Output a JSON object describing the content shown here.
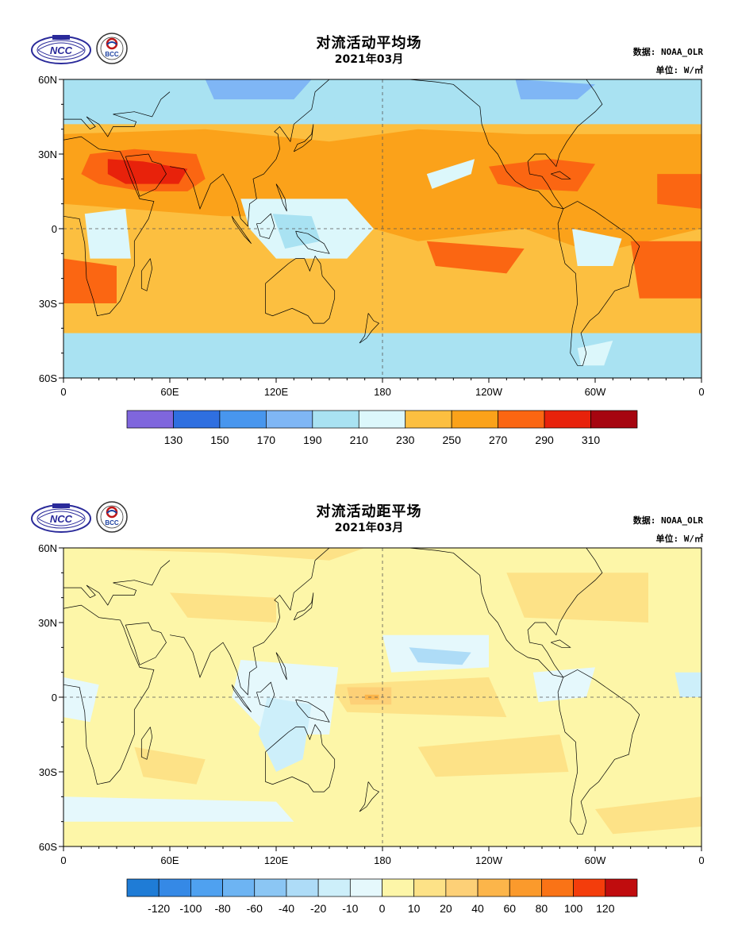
{
  "panels": [
    {
      "id": "mean",
      "title": "对流活动平均场",
      "subtitle": "2021年03月",
      "source": "数据: NOAA_OLR",
      "unit": "单位: W/㎡",
      "lat_labels": [
        "60N",
        "30N",
        "0",
        "30S",
        "60S"
      ],
      "lon_labels": [
        "0",
        "60E",
        "120E",
        "180",
        "120W",
        "60W",
        "0"
      ],
      "colorbar": {
        "colors": [
          "#7f66dd",
          "#2f6fe0",
          "#4896ee",
          "#7fb6f5",
          "#a9e2f2",
          "#dcf7fb",
          "#fcbf40",
          "#fba21a",
          "#fb6612",
          "#e8220b",
          "#a60510"
        ],
        "labels": [
          "130",
          "150",
          "170",
          "190",
          "210",
          "230",
          "250",
          "270",
          "290",
          "310"
        ]
      }
    },
    {
      "id": "anomaly",
      "title": "对流活动距平场",
      "subtitle": "2021年03月",
      "source": "数据: NOAA_OLR",
      "unit": "单位: W/㎡",
      "lat_labels": [
        "60N",
        "30N",
        "0",
        "30S",
        "60S"
      ],
      "lon_labels": [
        "0",
        "60E",
        "120E",
        "180",
        "120W",
        "60W",
        "0"
      ],
      "colorbar": {
        "colors": [
          "#1f7cd6",
          "#3589e6",
          "#4fa1f0",
          "#6db4f3",
          "#8bc6f4",
          "#aedcf7",
          "#cdeffa",
          "#e5f8fc",
          "#fdf6a8",
          "#fde287",
          "#fdd077",
          "#fcb54a",
          "#fb9a2c",
          "#fa7316",
          "#f43d0b",
          "#c00c0e"
        ],
        "labels": [
          "-120",
          "-100",
          "-80",
          "-60",
          "-40",
          "-20",
          "-10",
          "0",
          "10",
          "20",
          "40",
          "60",
          "80",
          "100",
          "120"
        ]
      }
    }
  ]
}
